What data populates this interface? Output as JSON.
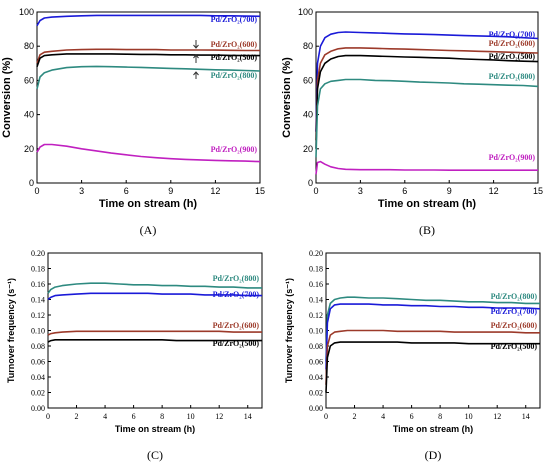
{
  "colors": {
    "s700": "#1a1ad8",
    "s600": "#9c3a2a",
    "s500": "#000000",
    "s800": "#2e8a80",
    "s900": "#c020c0"
  },
  "chart_data": [
    {
      "panel_label": "(A)",
      "type": "line",
      "xlabel": "Time on stream (h)",
      "ylabel": "Conversion (%)",
      "xlim": [
        0,
        15
      ],
      "ylim": [
        0,
        100
      ],
      "xticks": [
        "0",
        "3",
        "6",
        "9",
        "12",
        "15"
      ],
      "yticks": [
        "0",
        "20",
        "40",
        "60",
        "80",
        "100"
      ],
      "series": [
        {
          "name": "Pd/ZrO₂(700)",
          "color_key": "s700",
          "x": [
            0,
            0.2,
            0.5,
            1,
            2,
            3,
            4,
            5,
            6,
            7,
            8,
            9,
            10,
            11,
            12,
            13,
            14,
            15
          ],
          "y": [
            92,
            95,
            96.5,
            97,
            97.5,
            97.8,
            98,
            98,
            98,
            98,
            98,
            98,
            98,
            98,
            97.8,
            97.8,
            97.6,
            97.5
          ]
        },
        {
          "name": "Pd/ZrO₂(600)",
          "color_key": "s600",
          "x": [
            0,
            0.2,
            0.5,
            1,
            2,
            3,
            4,
            5,
            6,
            7,
            8,
            9,
            10,
            11,
            12,
            13,
            14,
            15
          ],
          "y": [
            70,
            75,
            76.5,
            77,
            77.8,
            78,
            78.2,
            78.2,
            78,
            78,
            78,
            77.8,
            77.8,
            77.8,
            77.7,
            77.6,
            77.5,
            77.5
          ]
        },
        {
          "name": "Pd/ZrO₂(500)",
          "color_key": "s500",
          "x": [
            0,
            0.2,
            0.5,
            1,
            2,
            3,
            4,
            5,
            6,
            7,
            8,
            9,
            10,
            11,
            12,
            13,
            14,
            15
          ],
          "y": [
            68,
            73,
            74.5,
            75,
            75.5,
            75.5,
            75.5,
            75.5,
            75.3,
            75.2,
            75.2,
            75,
            75,
            74.8,
            74.8,
            74.6,
            74.5,
            74.5
          ]
        },
        {
          "name": "Pd/ZrO₂(800)",
          "color_key": "s800",
          "x": [
            0,
            0.2,
            0.5,
            1,
            2,
            3,
            4,
            5,
            6,
            7,
            8,
            9,
            10,
            11,
            12,
            13,
            14,
            15
          ],
          "y": [
            55,
            62,
            64.5,
            66,
            67.5,
            68,
            68.2,
            68,
            67.8,
            67.6,
            67.3,
            67,
            66.8,
            66.5,
            66.2,
            66,
            65.8,
            65.5
          ]
        },
        {
          "name": "Pd/ZrO₂(900)",
          "color_key": "s900",
          "x": [
            0,
            0.2,
            0.5,
            1,
            2,
            3,
            4,
            5,
            6,
            7,
            8,
            9,
            10,
            11,
            12,
            13,
            14,
            15
          ],
          "y": [
            18,
            21,
            22.5,
            22.5,
            21.5,
            20,
            18.8,
            17.5,
            16.5,
            15.5,
            14.8,
            14.2,
            13.8,
            13.5,
            13.2,
            13,
            12.8,
            12.5
          ]
        }
      ]
    },
    {
      "panel_label": "(B)",
      "type": "line",
      "xlabel": "Time on stream (h)",
      "ylabel": "Conversion (%)",
      "xlim": [
        0,
        15
      ],
      "ylim": [
        0,
        100
      ],
      "xticks": [
        "0",
        "3",
        "6",
        "9",
        "12",
        "15"
      ],
      "yticks": [
        "0",
        "20",
        "40",
        "60",
        "80",
        "100"
      ],
      "series": [
        {
          "name": "Pd/ZrO₂(700)",
          "color_key": "s700",
          "x": [
            0,
            0.1,
            0.3,
            0.6,
            1,
            1.5,
            2,
            3,
            4,
            5,
            6,
            7,
            8,
            9,
            10,
            11,
            12,
            13,
            14,
            15
          ],
          "y": [
            30,
            70,
            80,
            85,
            87,
            88,
            88.3,
            88,
            87.8,
            87.5,
            87.2,
            87,
            86.8,
            86.5,
            86.2,
            86,
            85.8,
            85.5,
            85,
            84.5
          ]
        },
        {
          "name": "Pd/ZrO₂(600)",
          "color_key": "s600",
          "x": [
            0,
            0.1,
            0.3,
            0.6,
            1,
            1.5,
            2,
            3,
            4,
            5,
            6,
            7,
            8,
            9,
            10,
            11,
            12,
            13,
            14,
            15
          ],
          "y": [
            25,
            60,
            70,
            75,
            77,
            78.5,
            79,
            79,
            78.8,
            78.5,
            78.3,
            78,
            77.8,
            77.5,
            77.3,
            77,
            76.8,
            76.5,
            76.2,
            76
          ]
        },
        {
          "name": "Pd/ZrO₂(500)",
          "color_key": "s500",
          "x": [
            0,
            0.1,
            0.3,
            0.6,
            1,
            1.5,
            2,
            3,
            4,
            5,
            6,
            7,
            8,
            9,
            10,
            11,
            12,
            13,
            14,
            15
          ],
          "y": [
            20,
            55,
            65,
            70,
            72.5,
            74,
            74.5,
            74.5,
            74.2,
            74,
            73.7,
            73.5,
            73.2,
            73,
            72.5,
            72.2,
            72,
            71.5,
            71.2,
            71
          ]
        },
        {
          "name": "Pd/ZrO₂(800)",
          "color_key": "s800",
          "x": [
            0,
            0.1,
            0.3,
            0.6,
            1,
            1.5,
            2,
            3,
            4,
            5,
            6,
            7,
            8,
            9,
            10,
            11,
            12,
            13,
            14,
            15
          ],
          "y": [
            15,
            45,
            55,
            58,
            59.5,
            60,
            60.5,
            60.5,
            60,
            59.8,
            59.5,
            59,
            58.8,
            58.5,
            58,
            57.8,
            57.5,
            57.2,
            57,
            56.5
          ]
        },
        {
          "name": "Pd/ZrO₂(900)",
          "color_key": "s900",
          "x": [
            0,
            0.1,
            0.3,
            0.6,
            1,
            1.5,
            2,
            3,
            4,
            5,
            6,
            7,
            8,
            9,
            10,
            11,
            12,
            13,
            14,
            15
          ],
          "y": [
            5,
            12,
            12.5,
            11,
            9.5,
            8.5,
            8,
            7.8,
            7.8,
            7.8,
            7.6,
            7.6,
            7.6,
            7.5,
            7.5,
            7.5,
            7.5,
            7.5,
            7.5,
            7.5
          ]
        }
      ]
    },
    {
      "panel_label": "(C)",
      "type": "line",
      "xlabel": "Time on stream (h)",
      "ylabel": "Turnover frequency (s⁻¹)",
      "xlim": [
        0,
        15
      ],
      "ylim": [
        0,
        0.2
      ],
      "xticks": [
        "0",
        "2",
        "4",
        "6",
        "8",
        "10",
        "12",
        "14"
      ],
      "yticks": [
        "0.00",
        "0.02",
        "0.04",
        "0.06",
        "0.08",
        "0.10",
        "0.12",
        "0.14",
        "0.16",
        "0.18",
        "0.20"
      ],
      "series": [
        {
          "name": "Pd/ZrO₂(800)",
          "color_key": "s800",
          "x": [
            0,
            0.2,
            0.5,
            1,
            2,
            3,
            4,
            5,
            6,
            7,
            8,
            9,
            10,
            11,
            12,
            13,
            14,
            15
          ],
          "y": [
            0.148,
            0.153,
            0.156,
            0.158,
            0.16,
            0.161,
            0.161,
            0.16,
            0.159,
            0.159,
            0.158,
            0.158,
            0.157,
            0.157,
            0.156,
            0.156,
            0.155,
            0.155
          ]
        },
        {
          "name": "Pd/ZrO₂(700)",
          "color_key": "s700",
          "x": [
            0,
            0.2,
            0.5,
            1,
            2,
            3,
            4,
            5,
            6,
            7,
            8,
            9,
            10,
            11,
            12,
            13,
            14,
            15
          ],
          "y": [
            0.14,
            0.143,
            0.145,
            0.146,
            0.147,
            0.148,
            0.148,
            0.148,
            0.148,
            0.148,
            0.147,
            0.147,
            0.147,
            0.146,
            0.146,
            0.146,
            0.145,
            0.145
          ]
        },
        {
          "name": "Pd/ZrO₂(600)",
          "color_key": "s600",
          "x": [
            0,
            0.2,
            0.5,
            1,
            2,
            3,
            4,
            5,
            6,
            7,
            8,
            9,
            10,
            11,
            12,
            13,
            14,
            15
          ],
          "y": [
            0.094,
            0.096,
            0.097,
            0.098,
            0.099,
            0.099,
            0.099,
            0.099,
            0.099,
            0.099,
            0.099,
            0.099,
            0.099,
            0.099,
            0.099,
            0.098,
            0.098,
            0.098
          ]
        },
        {
          "name": "Pd/ZrO₂(500)",
          "color_key": "s500",
          "x": [
            0,
            0.2,
            0.5,
            1,
            2,
            3,
            4,
            5,
            6,
            7,
            8,
            9,
            10,
            11,
            12,
            13,
            14,
            15
          ],
          "y": [
            0.085,
            0.087,
            0.088,
            0.088,
            0.088,
            0.088,
            0.088,
            0.088,
            0.088,
            0.088,
            0.088,
            0.087,
            0.087,
            0.087,
            0.087,
            0.087,
            0.087,
            0.087
          ]
        }
      ]
    },
    {
      "panel_label": "(D)",
      "type": "line",
      "xlabel": "Time on stream (h)",
      "ylabel": "Turnover frequency (s⁻¹)",
      "xlim": [
        0,
        15
      ],
      "ylim": [
        0,
        0.2
      ],
      "xticks": [
        "0",
        "2",
        "4",
        "6",
        "8",
        "10",
        "12",
        "14"
      ],
      "yticks": [
        "0.00",
        "0.02",
        "0.04",
        "0.06",
        "0.08",
        "0.10",
        "0.12",
        "0.14",
        "0.16",
        "0.18",
        "0.20"
      ],
      "series": [
        {
          "name": "Pd/ZrO₂(800)",
          "color_key": "s800",
          "x": [
            0,
            0.1,
            0.3,
            0.6,
            1,
            1.5,
            2,
            3,
            4,
            5,
            6,
            7,
            8,
            9,
            10,
            11,
            12,
            13,
            14,
            15
          ],
          "y": [
            0.06,
            0.12,
            0.135,
            0.14,
            0.142,
            0.143,
            0.143,
            0.142,
            0.142,
            0.141,
            0.14,
            0.139,
            0.139,
            0.138,
            0.137,
            0.137,
            0.136,
            0.136,
            0.135,
            0.135
          ]
        },
        {
          "name": "Pd/ZrO₂(700)",
          "color_key": "s700",
          "x": [
            0,
            0.1,
            0.3,
            0.6,
            1,
            1.5,
            2,
            3,
            4,
            5,
            6,
            7,
            8,
            9,
            10,
            11,
            12,
            13,
            14,
            15
          ],
          "y": [
            0.05,
            0.11,
            0.128,
            0.133,
            0.134,
            0.134,
            0.134,
            0.134,
            0.133,
            0.133,
            0.132,
            0.132,
            0.131,
            0.131,
            0.13,
            0.13,
            0.129,
            0.129,
            0.129,
            0.128
          ]
        },
        {
          "name": "Pd/ZrO₂(600)",
          "color_key": "s600",
          "x": [
            0,
            0.1,
            0.3,
            0.6,
            1,
            1.5,
            2,
            3,
            4,
            5,
            6,
            7,
            8,
            9,
            10,
            11,
            12,
            13,
            14,
            15
          ],
          "y": [
            0.03,
            0.08,
            0.094,
            0.098,
            0.099,
            0.1,
            0.1,
            0.1,
            0.1,
            0.099,
            0.099,
            0.099,
            0.099,
            0.098,
            0.098,
            0.098,
            0.098,
            0.098,
            0.097,
            0.097
          ]
        },
        {
          "name": "Pd/ZrO₂(500)",
          "color_key": "s500",
          "x": [
            0,
            0.1,
            0.3,
            0.6,
            1,
            1.5,
            2,
            3,
            4,
            5,
            6,
            7,
            8,
            9,
            10,
            11,
            12,
            13,
            14,
            15
          ],
          "y": [
            0.02,
            0.065,
            0.08,
            0.084,
            0.085,
            0.085,
            0.085,
            0.085,
            0.085,
            0.085,
            0.084,
            0.084,
            0.084,
            0.084,
            0.083,
            0.083,
            0.083,
            0.083,
            0.083,
            0.083
          ]
        }
      ]
    }
  ]
}
